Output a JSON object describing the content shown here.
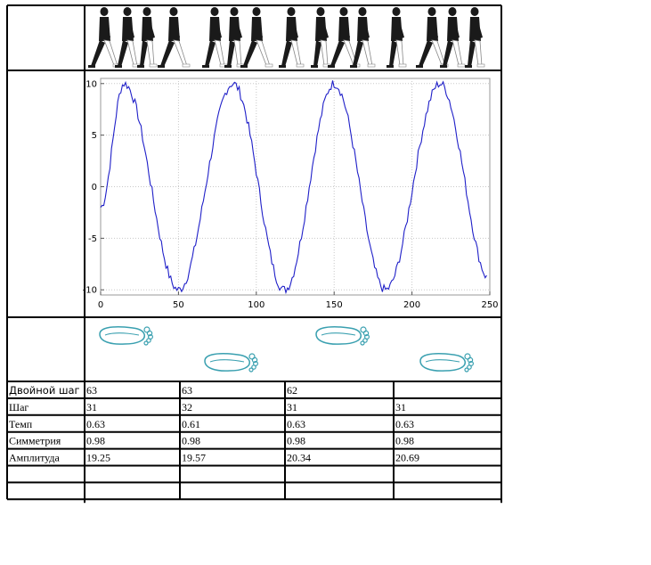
{
  "chart_data": {
    "type": "line",
    "xlim": [
      0,
      250
    ],
    "ylim": [
      -10.5,
      10.5
    ],
    "x_ticks": [
      0,
      50,
      100,
      150,
      200,
      250
    ],
    "y_ticks": [
      10,
      5,
      0,
      -5,
      -10
    ],
    "grid": true,
    "series_color": "#1f1fc8",
    "waveform": {
      "peaks_x": [
        15,
        85,
        150,
        218
      ],
      "troughs_x": [
        50,
        118,
        183
      ]
    }
  },
  "table": {
    "row_labels": [
      "Двойной шаг",
      "Шаг",
      "Темп",
      "Симметрия",
      "Амплитуда",
      "",
      ""
    ],
    "rows": [
      [
        "63",
        "63",
        "62",
        ""
      ],
      [
        "31",
        "32",
        "31",
        "31"
      ],
      [
        "0.63",
        "0.61",
        "0.63",
        "0.63"
      ],
      [
        "0.98",
        "0.98",
        "0.98",
        "0.98"
      ],
      [
        "19.25",
        "19.57",
        "20.34",
        "20.69"
      ],
      [
        "",
        "",
        "",
        ""
      ],
      [
        "",
        "",
        "",
        ""
      ]
    ]
  },
  "footprint_color": "#3aa0b0",
  "walker_icons": [
    "walking-person-icon"
  ],
  "footprint_icons": [
    "footprint-icon"
  ]
}
